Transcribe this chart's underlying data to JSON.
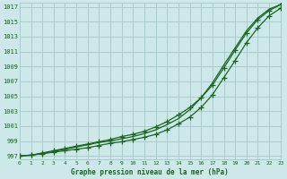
{
  "background_color": "#cce8e8",
  "grid_color": "#aacccc",
  "line_color": "#1a6620",
  "xlabel": "Graphe pression niveau de la mer (hPa)",
  "yticks": [
    997,
    999,
    1001,
    1003,
    1005,
    1007,
    1009,
    1011,
    1013,
    1015,
    1017
  ],
  "xticks": [
    0,
    1,
    2,
    3,
    4,
    5,
    6,
    7,
    8,
    9,
    10,
    11,
    12,
    13,
    14,
    15,
    16,
    17,
    18,
    19,
    20,
    21,
    22,
    23
  ],
  "xlim": [
    0,
    23
  ],
  "ylim": [
    996.5,
    1017.5
  ],
  "series_top": [
    997.0,
    997.1,
    997.4,
    997.7,
    998.0,
    998.3,
    998.6,
    998.9,
    999.2,
    999.6,
    999.9,
    1000.3,
    1000.9,
    1001.6,
    1002.5,
    1003.5,
    1004.8,
    1006.5,
    1008.8,
    1011.2,
    1013.5,
    1015.3,
    1016.5,
    1017.3
  ],
  "series_mid": [
    997.0,
    997.1,
    997.3,
    997.6,
    997.9,
    998.2,
    998.5,
    998.8,
    999.0,
    999.3,
    999.6,
    1000.0,
    1000.5,
    1001.2,
    1002.0,
    1003.2,
    1004.8,
    1006.8,
    1009.2,
    1011.5,
    1013.8,
    1015.5,
    1016.7,
    1017.3
  ],
  "series_low": [
    997.0,
    997.1,
    997.3,
    997.5,
    997.7,
    997.9,
    998.1,
    998.4,
    998.7,
    998.9,
    999.2,
    999.5,
    999.9,
    1000.5,
    1001.3,
    1002.2,
    1003.5,
    1005.2,
    1007.5,
    1009.8,
    1012.2,
    1014.2,
    1015.8,
    1016.8
  ]
}
